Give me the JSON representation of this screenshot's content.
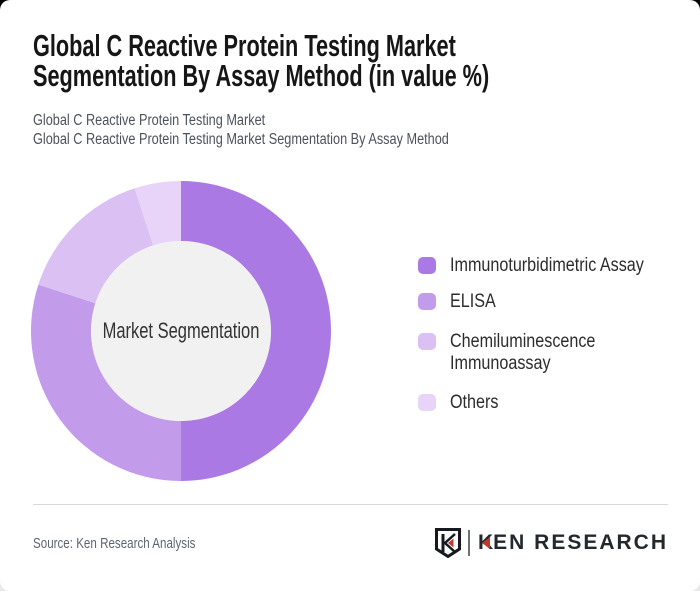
{
  "header": {
    "title_lines": [
      "Global C Reactive Protein Testing Market",
      "Segmentation By Assay Method (in value %)"
    ],
    "subtitle_lines": [
      "Global C Reactive Protein Testing Market",
      "Global C Reactive Protein Testing Market Segmentation By Assay Method"
    ]
  },
  "chart_data": {
    "type": "pie",
    "title": "Global C Reactive Protein Testing Market Segmentation By Assay Method (in value %)",
    "donut": true,
    "center_label": "Market Segmentation",
    "start_angle_deg": 0,
    "direction": "clockwise",
    "inner_radius_ratio": 0.6,
    "hole_color": "#F1F1F2",
    "value_unit": "%",
    "legend_position": "right",
    "slices": [
      {
        "label": "Immunoturbidimetric Assay",
        "value": 50,
        "color": "#AB79E3"
      },
      {
        "label": "ELISA",
        "value": 30,
        "color": "#C29BEB"
      },
      {
        "label": "Chemiluminescence Immunoassay",
        "value": 15,
        "color": "#DAC0F3"
      },
      {
        "label": "Others",
        "value": 5,
        "color": "#E7D4F8"
      }
    ]
  },
  "footer": {
    "source": "Source: Ken Research Analysis",
    "logo": {
      "shield_letter": "K",
      "brand_k": "K",
      "brand_rest": "EN RESEARCH",
      "accent_color": "#c4372c"
    }
  },
  "colors": {
    "card_background": "#ffffff",
    "title_text": "#161616",
    "subtitle_text": "#4c525c",
    "legend_text": "#2c2c2c",
    "divider": "#d9d9d9",
    "source_text": "#5d6570"
  }
}
